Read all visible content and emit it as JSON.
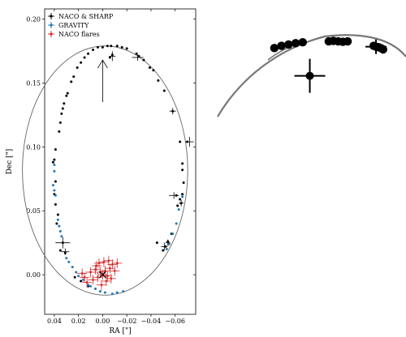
{
  "chart_data": [
    {
      "type": "scatter",
      "title": "",
      "xlabel": "RA [\"]",
      "ylabel": "Dec [\"]",
      "xlim": [
        0.048,
        -0.077
      ],
      "ylim": [
        -0.031,
        0.208
      ],
      "x_ticks": [
        0.04,
        0.02,
        0.0,
        -0.02,
        -0.04,
        -0.06
      ],
      "x_tick_labels": [
        "0.04",
        "0.02",
        "0.00",
        "−0.02",
        "−0.04",
        "−0.06"
      ],
      "y_ticks": [
        0.0,
        0.05,
        0.1,
        0.15,
        0.2
      ],
      "y_tick_labels": [
        "0.00",
        "0.05",
        "0.10",
        "0.15",
        "0.20"
      ],
      "legend_position": "top-left",
      "colors": {
        "naco_sharp": "#000000",
        "gravity": "#1f77b4",
        "naco_flares": "#d62728",
        "orbit": "#666666"
      },
      "orbit": {
        "center": [
          -0.002,
          0.0815
        ],
        "semi_axis_ra": 0.0684,
        "semi_axis_dec": 0.0975,
        "tilt_deg": 0
      },
      "arrow": {
        "from": [
          0.0,
          0.135
        ],
        "to": [
          0.0,
          0.168
        ]
      },
      "black_hole": [
        0.0,
        0.0
      ],
      "series": [
        {
          "name": "NACO & SHARP",
          "marker": "point",
          "points": [
            [
              0.04,
              0.09
            ],
            [
              0.041,
              0.088
            ],
            [
              0.039,
              0.098
            ],
            [
              0.036,
              0.112
            ],
            [
              0.035,
              0.119
            ],
            [
              0.034,
              0.126
            ],
            [
              0.033,
              0.13
            ],
            [
              0.032,
              0.134
            ],
            [
              0.03,
              0.14
            ],
            [
              0.029,
              0.142
            ],
            [
              0.026,
              0.151
            ],
            [
              0.024,
              0.155
            ],
            [
              0.021,
              0.162
            ],
            [
              0.018,
              0.166
            ],
            [
              0.015,
              0.17
            ],
            [
              0.012,
              0.173
            ],
            [
              0.008,
              0.176
            ],
            [
              0.004,
              0.178
            ],
            [
              0.0,
              0.178
            ],
            [
              -0.004,
              0.179
            ],
            [
              -0.007,
              0.179
            ],
            [
              -0.012,
              0.179
            ],
            [
              -0.016,
              0.178
            ],
            [
              -0.02,
              0.177
            ],
            [
              -0.028,
              0.173
            ],
            [
              -0.03,
              0.171
            ],
            [
              -0.034,
              0.168
            ],
            [
              -0.039,
              0.162
            ],
            [
              -0.042,
              0.16
            ],
            [
              -0.046,
              0.152
            ],
            [
              -0.051,
              0.144
            ],
            [
              -0.058,
              0.128
            ],
            [
              -0.064,
              0.104
            ],
            [
              -0.066,
              0.087
            ],
            [
              -0.066,
              0.082
            ],
            [
              -0.067,
              0.072
            ],
            [
              -0.066,
              0.063
            ],
            [
              -0.061,
              0.062
            ],
            [
              -0.062,
              0.054
            ],
            [
              -0.057,
              0.032
            ],
            [
              -0.054,
              0.026
            ],
            [
              -0.052,
              0.022
            ],
            [
              -0.05,
              0.019
            ],
            [
              0.033,
              0.025
            ],
            [
              0.031,
              0.017
            ],
            [
              0.035,
              0.019
            ],
            [
              0.038,
              0.04
            ],
            [
              0.037,
              0.047
            ],
            [
              0.039,
              0.055
            ],
            [
              0.04,
              0.063
            ],
            [
              0.039,
              0.073
            ],
            [
              0.023,
              -0.002
            ],
            [
              0.018,
              -0.005
            ],
            [
              0.012,
              -0.009
            ],
            [
              0.0,
              0.0
            ],
            [
              -0.008,
              0.172
            ],
            [
              -0.006,
              0.17
            ],
            [
              -0.07,
              0.104
            ],
            [
              -0.065,
              0.056
            ],
            [
              -0.064,
              0.059
            ],
            [
              -0.045,
              0.025
            ]
          ]
        },
        {
          "name": "GRAVITY",
          "marker": "point",
          "points": [
            [
              0.04,
              0.086
            ],
            [
              0.04,
              0.081
            ],
            [
              0.041,
              0.07
            ],
            [
              0.04,
              0.066
            ],
            [
              0.039,
              0.062
            ],
            [
              0.037,
              0.043
            ],
            [
              0.036,
              0.038
            ],
            [
              0.035,
              0.034
            ],
            [
              0.034,
              0.03
            ],
            [
              0.03,
              0.013
            ],
            [
              0.028,
              0.01
            ],
            [
              0.025,
              0.006
            ],
            [
              0.022,
              0.002
            ],
            [
              0.02,
              -0.001
            ],
            [
              0.016,
              -0.004
            ],
            [
              0.012,
              -0.008
            ],
            [
              0.01,
              -0.009
            ],
            [
              0.006,
              -0.011
            ],
            [
              0.002,
              -0.013
            ],
            [
              -0.002,
              -0.014
            ],
            [
              -0.008,
              -0.015
            ],
            [
              -0.012,
              -0.014
            ],
            [
              -0.017,
              -0.013
            ],
            [
              -0.053,
              0.02
            ],
            [
              -0.055,
              0.024
            ],
            [
              -0.058,
              0.032
            ],
            [
              -0.061,
              0.04
            ],
            [
              -0.063,
              0.051
            ],
            [
              -0.066,
              0.061
            ]
          ]
        },
        {
          "name": "NACO flares",
          "marker": "cross",
          "points": [
            [
              0.0,
              0.0
            ],
            [
              0.002,
              0.002
            ],
            [
              0.004,
              -0.002
            ],
            [
              0.006,
              0.004
            ],
            [
              -0.002,
              0.003
            ],
            [
              -0.004,
              -0.001
            ],
            [
              -0.006,
              0.005
            ],
            [
              -0.008,
              0.008
            ],
            [
              -0.01,
              0.003
            ],
            [
              -0.003,
              -0.005
            ],
            [
              0.008,
              -0.004
            ],
            [
              0.01,
              0.002
            ],
            [
              0.015,
              -0.002
            ],
            [
              0.013,
              -0.006
            ],
            [
              0.003,
              0.009
            ],
            [
              -0.001,
              0.01
            ],
            [
              -0.012,
              0.009
            ],
            [
              0.005,
              0.007
            ],
            [
              -0.007,
              -0.003
            ],
            [
              0.001,
              -0.008
            ],
            [
              -0.005,
              0.011
            ],
            [
              0.017,
              0.001
            ]
          ]
        }
      ]
    },
    {
      "type": "scatter",
      "title": "",
      "xlabel": "",
      "ylabel": "",
      "note": "zoomed inset of apocentre region, no visible axes",
      "colors": {
        "points": "#000000",
        "orbit": "#777777"
      },
      "points": [
        [
          0.021,
          0.1775
        ],
        [
          0.018,
          0.178
        ],
        [
          0.015,
          0.1783
        ],
        [
          0.012,
          0.1786
        ],
        [
          0.009,
          0.1788
        ],
        [
          -0.002,
          0.179
        ],
        [
          -0.004,
          0.1791
        ],
        [
          -0.006,
          0.179
        ],
        [
          -0.008,
          0.1789
        ],
        [
          -0.01,
          0.179
        ],
        [
          -0.021,
          0.178
        ],
        [
          -0.023,
          0.1777
        ],
        [
          -0.024,
          0.1775
        ],
        [
          -0.025,
          0.1772
        ]
      ],
      "error_points": [
        [
          0.006,
          0.1713
        ],
        [
          -0.022,
          0.1778
        ]
      ]
    }
  ]
}
